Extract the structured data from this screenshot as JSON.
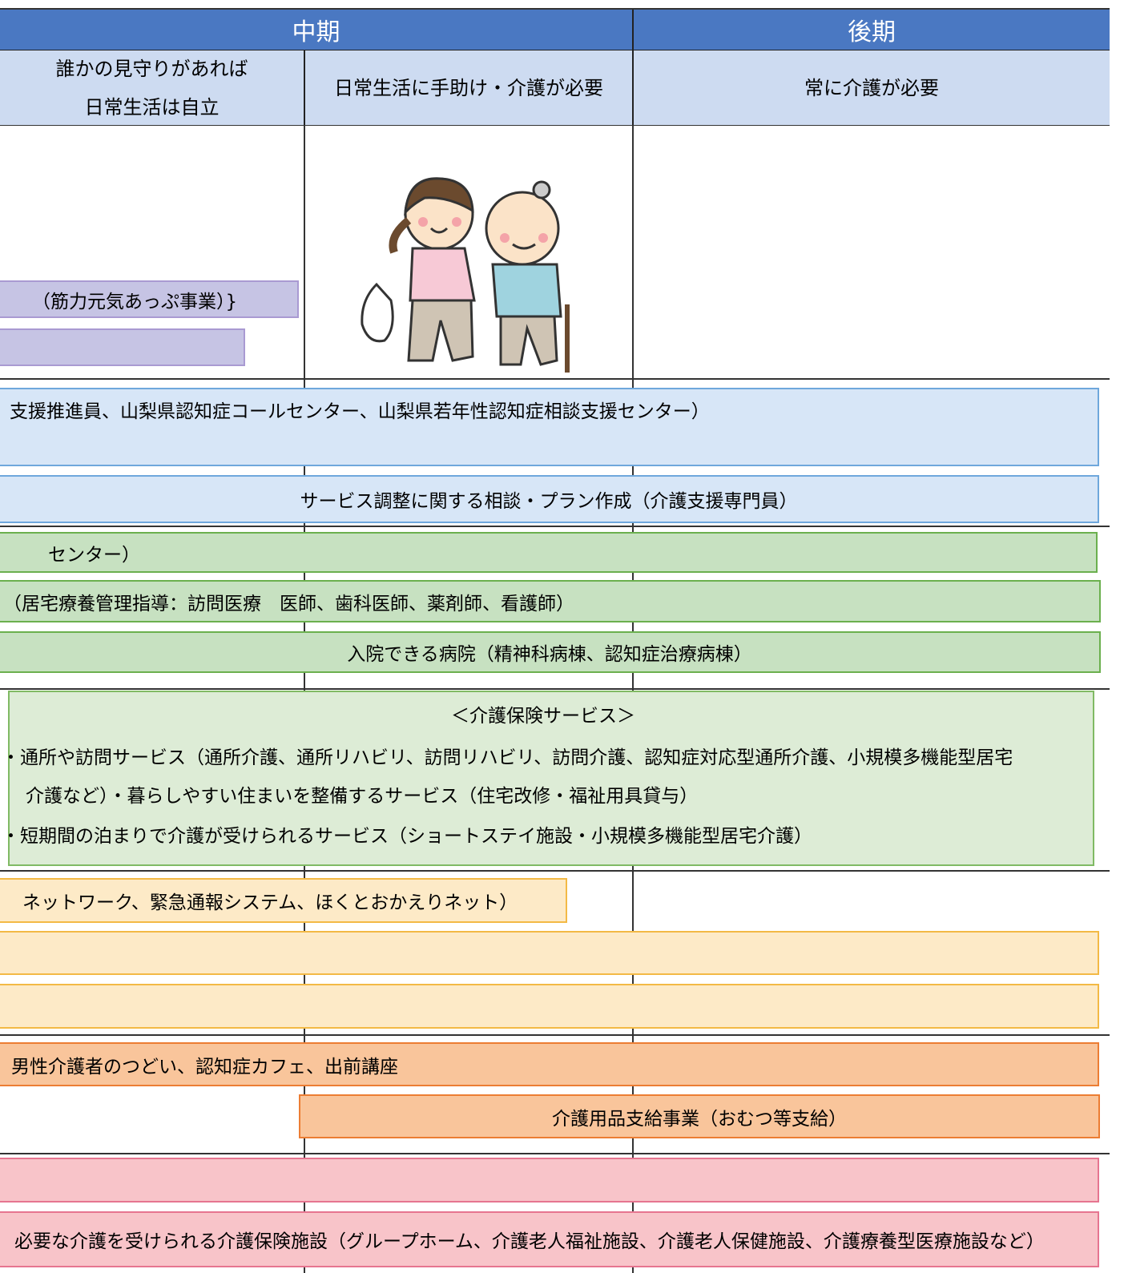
{
  "header": {
    "mid": "中期",
    "late": "後期"
  },
  "stages": [
    "誰かの見守りがあれば\n日常生活は自立",
    "日常生活に手助け・介護が必要",
    "常に介護が必要"
  ],
  "bars": {
    "exercise": "（筋力元気あっぷ事業）}",
    "consult": "支援推進員、山梨県認知症コールセンター、山梨県若年性認知症相談支援センター）",
    "plan": "サービス調整に関する相談・プラン作成（介護支援専門員）",
    "center": "センター）",
    "home_medical": "（居宅療養管理指導：訪問医療　医師、歯科医師、薬剤師、看護師）",
    "hospital": "入院できる病院（精神科病棟、認知症治療病棟）",
    "insurance_title": "＜介護保険サービス＞",
    "insurance_lines": [
      "・通所や訪問サービス（通所介護、通所リハビリ、訪問リハビリ、訪問介護、認知症対応型通所介護、小規模多機能型居宅",
      "介護など）・暮らしやすい住まいを整備するサービス（住宅改修・福祉用具貸与）",
      "・短期間の泊まりで介護が受けられるサービス（ショートステイ施設・小規模多機能型居宅介護）"
    ],
    "network": "ネットワーク、緊急通報システム、ほくとおかえりネット）",
    "caregivers": "男性介護者のつどい、認知症カフェ、出前講座",
    "supplies": "介護用品支給事業（おむつ等支給）",
    "facility": "必要な介護を受けられる介護保険施設（グループホーム、介護老人福祉施設、介護老人保健施設、介護療養型医療施設など）"
  }
}
